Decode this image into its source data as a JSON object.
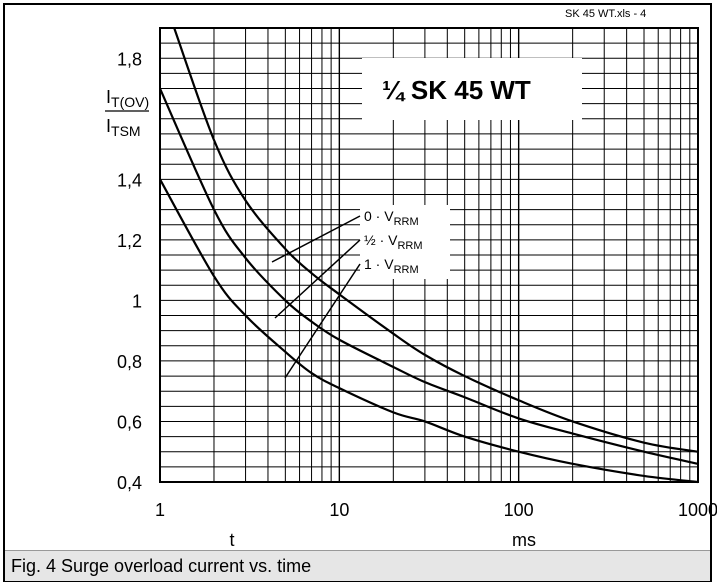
{
  "header": {
    "file_ref": "SK 45 WT.xls - 4"
  },
  "caption": "Fig. 4 Surge overload current vs. time",
  "chart_data": {
    "type": "line",
    "title": "¼ SK 45 WT",
    "xscale": "log",
    "xlim": [
      1,
      1000
    ],
    "ylim": [
      0.4,
      1.9
    ],
    "xticks": [
      1,
      10,
      100,
      1000
    ],
    "xtick_labels": [
      "1",
      "10",
      "100",
      "1000"
    ],
    "yticks": [
      0.4,
      0.6,
      0.8,
      1.0,
      1.2,
      1.4,
      1.8
    ],
    "ytick_labels": [
      "0,4",
      "0,6",
      "0,8",
      "1",
      "1,2",
      "1,4",
      "1,8"
    ],
    "ylabel_num": "T(OV)",
    "ylabel_den": "TSM",
    "ylabel_prefix": "I",
    "xlabel": "t",
    "xunit": "ms",
    "grid": true,
    "series": [
      {
        "name_pre": "0 · V",
        "name_sub": "RRM",
        "x": [
          1.2,
          2,
          3,
          5,
          7,
          10,
          20,
          30,
          50,
          100,
          200,
          500,
          1000
        ],
        "y": [
          1.9,
          1.53,
          1.33,
          1.17,
          1.09,
          1.02,
          0.89,
          0.82,
          0.75,
          0.67,
          0.6,
          0.53,
          0.5
        ]
      },
      {
        "name_pre": "½ · V",
        "name_sub": "RRM",
        "x": [
          1,
          2,
          3,
          5,
          7,
          10,
          20,
          30,
          50,
          100,
          200,
          500,
          1000
        ],
        "y": [
          1.7,
          1.3,
          1.14,
          1.0,
          0.93,
          0.87,
          0.78,
          0.73,
          0.68,
          0.61,
          0.56,
          0.5,
          0.46
        ]
      },
      {
        "name_pre": "1 · V",
        "name_sub": "RRM",
        "x": [
          1,
          2,
          3,
          5,
          7,
          10,
          20,
          30,
          50,
          100,
          200,
          500,
          1000
        ],
        "y": [
          1.4,
          1.08,
          0.95,
          0.83,
          0.76,
          0.71,
          0.63,
          0.6,
          0.55,
          0.5,
          0.46,
          0.42,
          0.4
        ]
      }
    ]
  }
}
